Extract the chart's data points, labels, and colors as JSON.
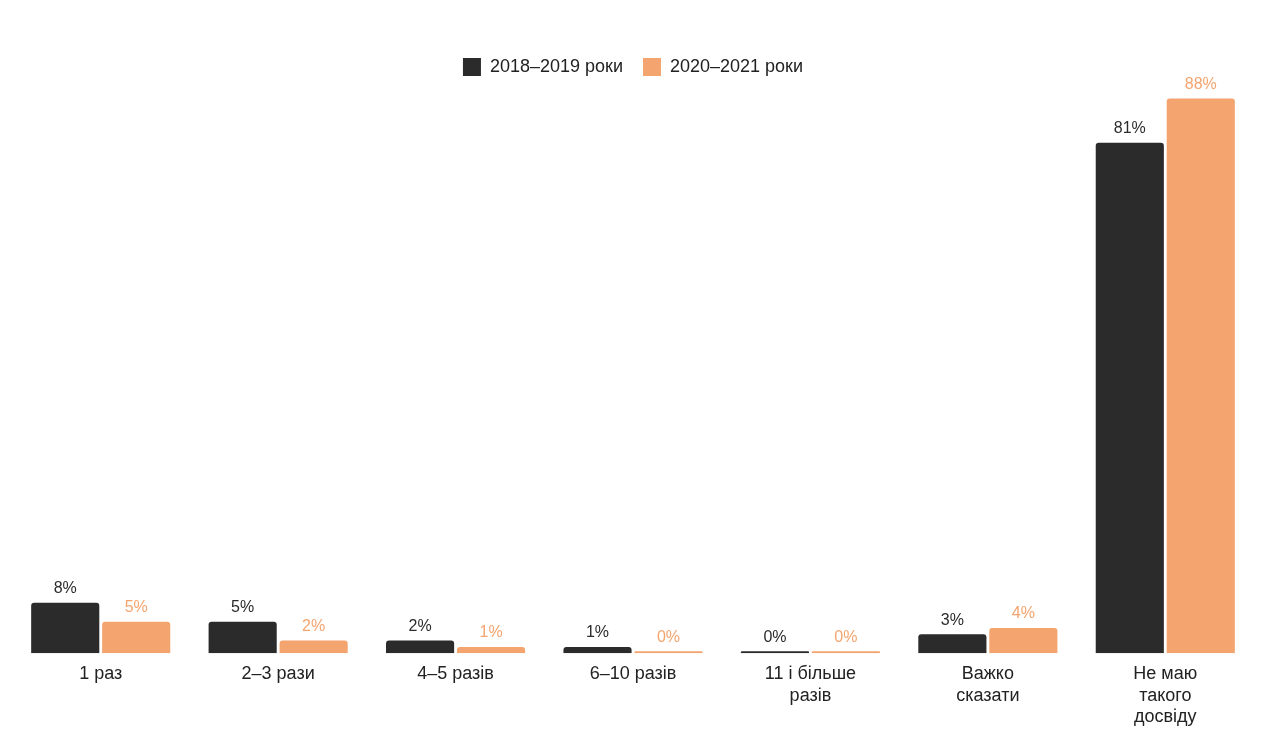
{
  "chart_data": {
    "type": "bar",
    "categories": [
      "1 раз",
      "2–3 рази",
      "4–5 разів",
      "6–10 разів",
      "11 і більше разів",
      "Важко сказати",
      "Не маю такого досвіду"
    ],
    "series": [
      {
        "name": "2018–2019 роки",
        "color": "#2b2b2b",
        "values": [
          8,
          5,
          2,
          1,
          0,
          3,
          81
        ],
        "value_labels": [
          "8%",
          "5%",
          "2%",
          "1%",
          "0%",
          "3%",
          "81%"
        ]
      },
      {
        "name": "2020–2021 роки",
        "color": "#f4a46e",
        "values": [
          5,
          2,
          1,
          0,
          0,
          4,
          88
        ],
        "value_labels": [
          "5%",
          "2%",
          "1%",
          "0%",
          "0%",
          "4%",
          "88%"
        ]
      }
    ],
    "legend": "top",
    "grid": false
  }
}
